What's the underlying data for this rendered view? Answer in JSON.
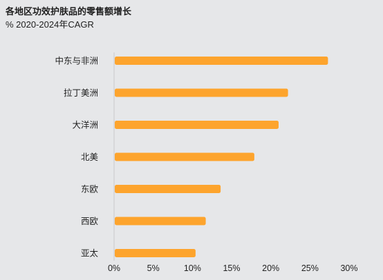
{
  "chart_data": {
    "type": "bar",
    "orientation": "horizontal",
    "title": "各地区功效护肤品的零售额增长",
    "subtitle": "% 2020-2024年CAGR",
    "categories": [
      "中东与非洲",
      "拉丁美洲",
      "大洋洲",
      "北美",
      "东欧",
      "西欧",
      "亚太"
    ],
    "values": [
      27.3,
      22.2,
      21.0,
      17.9,
      13.6,
      11.7,
      10.4
    ],
    "xlim": [
      0,
      30
    ],
    "xticks": [
      0,
      5,
      10,
      15,
      20,
      25,
      30
    ],
    "tick_labels": [
      "0%",
      "5%",
      "10%",
      "15%",
      "20%",
      "25%",
      "30%"
    ],
    "grid": false,
    "bar_color": "#fda42d",
    "axis_color": "#c9cacc"
  }
}
